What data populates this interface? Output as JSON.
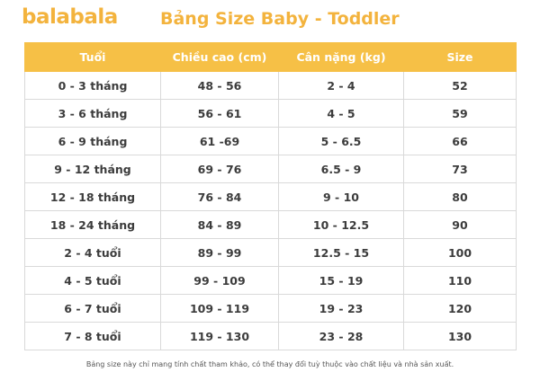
{
  "brand": {
    "logo_text": "balabala",
    "accent_color": "#f3b33d",
    "header_color": "#f6c046"
  },
  "title": "Bảng Size Baby - Toddler",
  "table": {
    "headers": [
      "Tuổi",
      "Chiều cao (cm)",
      "Cân nặng (kg)",
      "Size"
    ],
    "rows": [
      [
        "0 - 3 tháng",
        "48 - 56",
        "2 - 4",
        "52"
      ],
      [
        "3 - 6 tháng",
        "56 - 61",
        "4 - 5",
        "59"
      ],
      [
        "6 - 9 tháng",
        "61 -69",
        "5 - 6.5",
        "66"
      ],
      [
        "9 - 12 tháng",
        "69 - 76",
        "6.5 - 9",
        "73"
      ],
      [
        "12 - 18 tháng",
        "76 - 84",
        "9 - 10",
        "80"
      ],
      [
        "18 - 24 tháng",
        "84 - 89",
        "10 - 12.5",
        "90"
      ],
      [
        "2 - 4 tuổi",
        "89 - 99",
        "12.5 - 15",
        "100"
      ],
      [
        "4 - 5 tuổi",
        "99 - 109",
        "15 - 19",
        "110"
      ],
      [
        "6 - 7 tuổi",
        "109 - 119",
        "19 - 23",
        "120"
      ],
      [
        "7 - 8 tuổi",
        "119 - 130",
        "23 - 28",
        "130"
      ]
    ]
  },
  "note": "Bảng size này chỉ mang tính chất tham khảo, có thể thay đổi tuỳ thuộc vào chất liệu và nhà sản xuất."
}
